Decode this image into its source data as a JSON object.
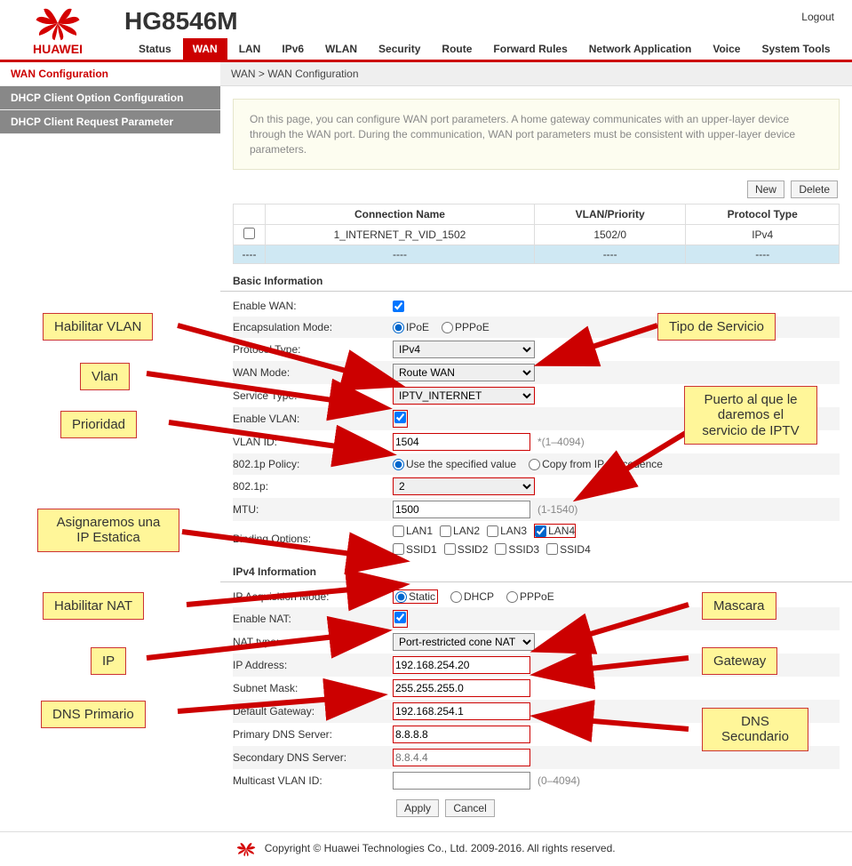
{
  "header": {
    "brand": "HUAWEI",
    "model": "HG8546M",
    "logout": "Logout",
    "nav": [
      "Status",
      "WAN",
      "LAN",
      "IPv6",
      "WLAN",
      "Security",
      "Route",
      "Forward Rules",
      "Network Application",
      "Voice",
      "System Tools"
    ],
    "nav_active_index": 1
  },
  "sidebar": {
    "items": [
      "WAN Configuration",
      "DHCP Client Option Configuration",
      "DHCP Client Request Parameter"
    ],
    "active_index": 0
  },
  "crumb": "WAN > WAN Configuration",
  "infobox": "On this page, you can configure WAN port parameters. A home gateway communicates with an upper-layer device through the WAN port. During the communication, WAN port parameters must be consistent with upper-layer device parameters.",
  "buttons": {
    "new": "New",
    "delete": "Delete",
    "apply": "Apply",
    "cancel": "Cancel"
  },
  "table": {
    "headers": [
      "",
      "Connection Name",
      "VLAN/Priority",
      "Protocol Type"
    ],
    "row": {
      "name": "1_INTERNET_R_VID_1502",
      "vlan": "1502/0",
      "proto": "IPv4"
    },
    "dashes": "----"
  },
  "sections": {
    "basic": "Basic Information",
    "ipv4": "IPv4 Information"
  },
  "labels": {
    "enable_wan": "Enable WAN:",
    "encap_mode": "Encapsulation Mode:",
    "proto_type": "Protocol Type:",
    "wan_mode": "WAN Mode:",
    "service_type": "Service Type:",
    "enable_vlan": "Enable VLAN:",
    "vlan_id": "VLAN ID:",
    "p8021_policy": "802.1p Policy:",
    "p8021": "802.1p:",
    "mtu": "MTU:",
    "binding": "Binding Options:",
    "ip_acq": "IP Acquisition Mode:",
    "enable_nat": "Enable NAT:",
    "nat_type": "NAT type:",
    "ip_addr": "IP Address:",
    "subnet": "Subnet Mask:",
    "gateway": "Default Gateway:",
    "dns1": "Primary DNS Server:",
    "dns2": "Secondary DNS Server:",
    "mcast_vlan": "Multicast VLAN ID:"
  },
  "radios": {
    "encap": {
      "ipoe": "IPoE",
      "pppoe": "PPPoE",
      "selected": "ipoe"
    },
    "policy": {
      "spec": "Use the specified value",
      "copy": "Copy from IP precedence",
      "selected": "spec"
    },
    "ip_acq": {
      "static": "Static",
      "dhcp": "DHCP",
      "pppoe": "PPPoE",
      "selected": "static"
    }
  },
  "selects": {
    "proto_type": "IPv4",
    "wan_mode": "Route WAN",
    "service_type": "IPTV_INTERNET",
    "p8021": "2",
    "nat_type": "Port-restricted cone NAT"
  },
  "inputs": {
    "enable_wan_checked": true,
    "enable_vlan_checked": true,
    "enable_nat_checked": true,
    "vlan_id": "1504",
    "mtu": "1500",
    "ip_addr": "192.168.254.20",
    "subnet": "255.255.255.0",
    "gateway": "192.168.254.1",
    "dns1": "8.8.8.8",
    "dns2_placeholder": "8.8.4.4",
    "mcast_vlan": ""
  },
  "hints": {
    "vlan_id": "*(1–4094)",
    "mtu": "(1-1540)",
    "mcast": "(0–4094)"
  },
  "binding": {
    "lans": [
      "LAN1",
      "LAN2",
      "LAN3",
      "LAN4"
    ],
    "lan_checked": [
      false,
      false,
      false,
      true
    ],
    "ssids": [
      "SSID1",
      "SSID2",
      "SSID3",
      "SSID4"
    ],
    "ssid_checked": [
      false,
      false,
      false,
      false
    ]
  },
  "footer": "Copyright © Huawei Technologies Co., Ltd. 2009-2016. All rights reserved.",
  "callouts": {
    "c1": "Habilitar VLAN",
    "c2": "Vlan",
    "c3": "Prioridad",
    "c4": "Asignaremos una IP Estatica",
    "c5": "Habilitar NAT",
    "c6": "IP",
    "c7": "DNS Primario",
    "c8": "Tipo de Servicio",
    "c9": "Puerto al que le daremos el servicio de IPTV",
    "c10": "Mascara",
    "c11": "Gateway",
    "c12": "DNS Secundario"
  },
  "colors": {
    "brand_red": "#c00",
    "callout_bg": "#fff699",
    "callout_border": "#c33",
    "info_bg": "#fdfdf0"
  }
}
